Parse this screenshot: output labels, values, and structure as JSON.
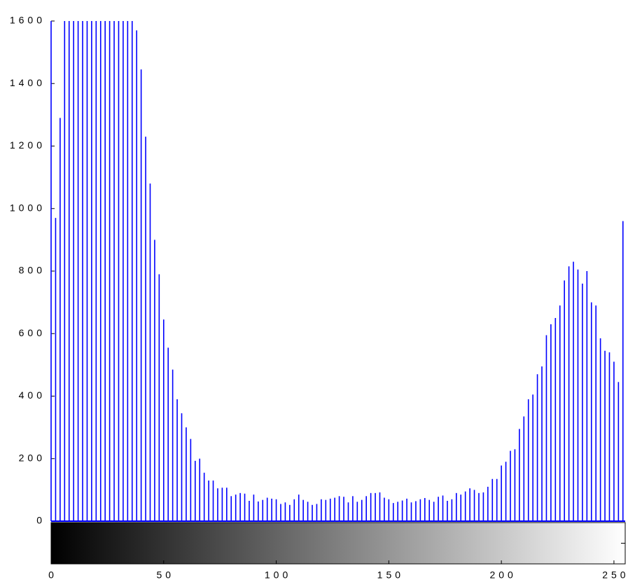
{
  "chart_data": {
    "type": "stem",
    "x": [
      0,
      2,
      4,
      6,
      8,
      10,
      12,
      14,
      16,
      18,
      20,
      22,
      24,
      26,
      28,
      30,
      32,
      34,
      36,
      38,
      40,
      42,
      44,
      46,
      48,
      50,
      52,
      54,
      56,
      58,
      60,
      62,
      64,
      66,
      68,
      70,
      72,
      74,
      76,
      78,
      80,
      82,
      84,
      86,
      88,
      90,
      92,
      94,
      96,
      98,
      100,
      102,
      104,
      106,
      108,
      110,
      112,
      114,
      116,
      118,
      120,
      122,
      124,
      126,
      128,
      130,
      132,
      134,
      136,
      138,
      140,
      142,
      144,
      146,
      148,
      150,
      152,
      154,
      156,
      158,
      160,
      162,
      164,
      166,
      168,
      170,
      172,
      174,
      176,
      178,
      180,
      182,
      184,
      186,
      188,
      190,
      192,
      194,
      196,
      198,
      200,
      202,
      204,
      206,
      208,
      210,
      212,
      214,
      216,
      218,
      220,
      222,
      224,
      226,
      228,
      230,
      232,
      234,
      236,
      238,
      240,
      242,
      244,
      246,
      248,
      250,
      252,
      254
    ],
    "values": [
      1600,
      970,
      1290,
      1600,
      1600,
      1600,
      1600,
      1600,
      1600,
      1600,
      1600,
      1600,
      1600,
      1600,
      1600,
      1600,
      1600,
      1600,
      1600,
      1570,
      1445,
      1230,
      1080,
      900,
      790,
      645,
      555,
      485,
      390,
      345,
      300,
      263,
      193,
      200,
      155,
      130,
      130,
      105,
      107,
      107,
      80,
      85,
      90,
      88,
      65,
      85,
      63,
      68,
      75,
      72,
      70,
      55,
      60,
      52,
      70,
      85,
      68,
      62,
      52,
      55,
      70,
      68,
      72,
      75,
      80,
      78,
      60,
      80,
      62,
      68,
      80,
      90,
      90,
      92,
      75,
      70,
      58,
      62,
      66,
      72,
      60,
      64,
      70,
      74,
      68,
      62,
      78,
      82,
      65,
      70,
      90,
      85,
      95,
      105,
      100,
      90,
      92,
      110,
      135,
      135,
      178,
      190,
      225,
      230,
      295,
      335,
      390,
      405,
      470,
      495,
      595,
      630,
      650,
      690,
      770,
      815,
      830,
      805,
      760,
      800,
      700,
      690,
      585,
      545,
      540,
      510,
      445,
      960
    ],
    "color": "#0000ff",
    "xlim": [
      0,
      255
    ],
    "xticks": [
      0,
      50,
      100,
      150,
      200,
      250
    ],
    "ylim": [
      0,
      1600
    ],
    "yticks": [
      0,
      200,
      400,
      600,
      800,
      1000,
      1200,
      1400,
      1600
    ],
    "colorbar": true
  }
}
